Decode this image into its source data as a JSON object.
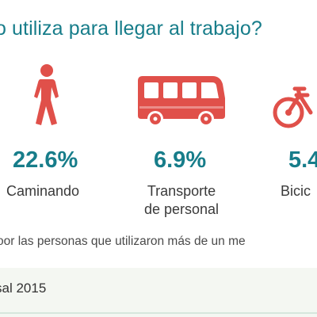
{
  "question": "¿Qué medio de transporte utiliza para llegar al trabajo?",
  "question_visible": "o utiliza para llegar al trabajo?",
  "items": [
    {
      "icon": "walking-person-icon",
      "percent": "22.6%",
      "label_lines": [
        "Caminando"
      ]
    },
    {
      "icon": "bus-icon",
      "percent": "6.9%",
      "label_lines": [
        "Transporte",
        "de personal"
      ]
    },
    {
      "icon": "bicycle-icon",
      "percent": "5.4",
      "label_lines": [
        "Bicic"
      ]
    }
  ],
  "note": "oor las personas que utilizaron más de un me",
  "source": "sal 2015",
  "colors": {
    "accent_teal": "#177d8a",
    "icon_red": "#e0504a",
    "text": "#3a3a3a",
    "footer_bg": "#f4f7f2"
  }
}
